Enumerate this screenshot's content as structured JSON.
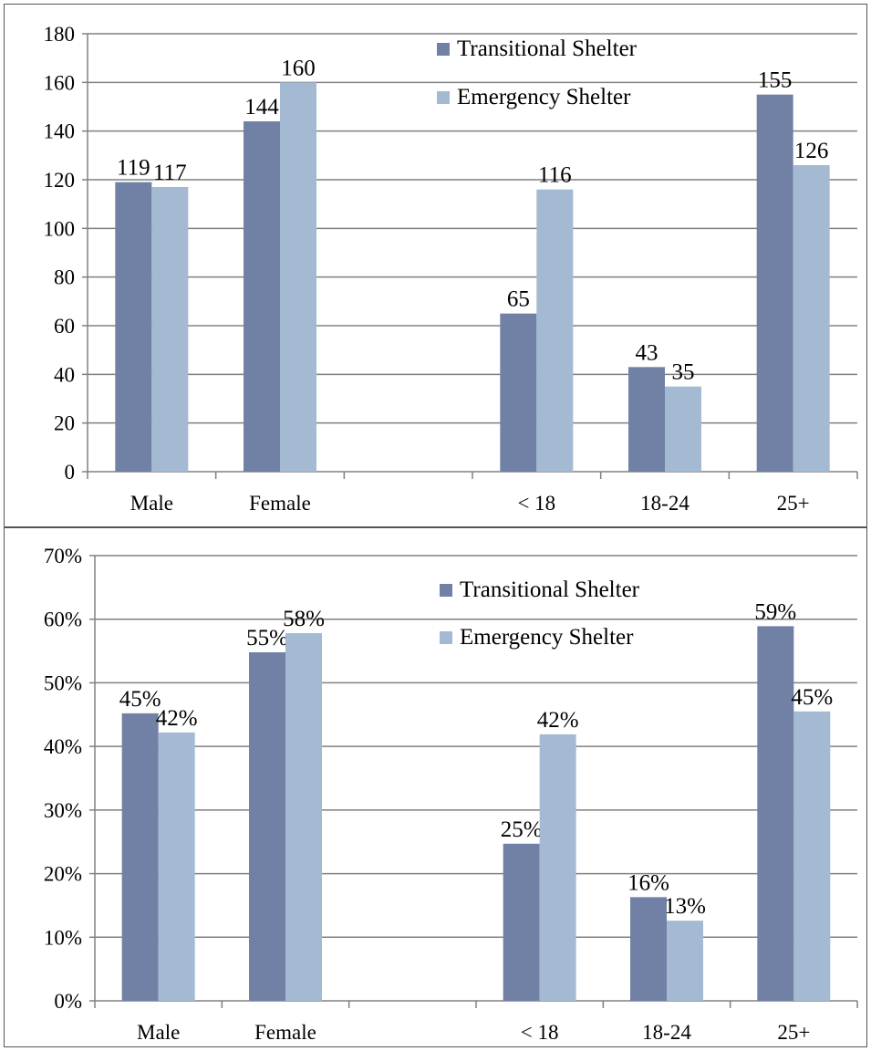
{
  "colors": {
    "transitional": "#7180a5",
    "emergency": "#a3bad2",
    "grid": "#808080",
    "axis": "#808080"
  },
  "chart_data": [
    {
      "type": "bar",
      "categories": [
        "Male",
        "Female",
        "",
        "< 18",
        "18-24",
        "25+"
      ],
      "series": [
        {
          "name": "Transitional Shelter",
          "values": [
            119,
            144,
            null,
            65,
            43,
            155
          ],
          "labels": [
            "119",
            "144",
            "",
            "65",
            "43",
            "155"
          ]
        },
        {
          "name": "Emergency Shelter",
          "values": [
            117,
            160,
            null,
            116,
            35,
            126
          ],
          "labels": [
            "117",
            "160",
            "",
            "116",
            "35",
            "126"
          ]
        }
      ],
      "ylim": [
        0,
        180
      ],
      "yticks": [
        0,
        20,
        40,
        60,
        80,
        100,
        120,
        140,
        160,
        180
      ],
      "ytick_labels": [
        "0",
        "20",
        "40",
        "60",
        "80",
        "100",
        "120",
        "140",
        "160",
        "180"
      ],
      "grid": true,
      "legend": "top-center"
    },
    {
      "type": "bar",
      "categories": [
        "Male",
        "Female",
        "",
        "< 18",
        "18-24",
        "25+"
      ],
      "series": [
        {
          "name": "Transitional Shelter",
          "values": [
            45.2,
            54.8,
            null,
            24.7,
            16.3,
            58.9
          ],
          "labels": [
            "45%",
            "55%",
            "",
            "25%",
            "16%",
            "59%"
          ]
        },
        {
          "name": "Emergency Shelter",
          "values": [
            42.2,
            57.8,
            null,
            41.9,
            12.6,
            45.5
          ],
          "labels": [
            "42%",
            "58%",
            "",
            "42%",
            "13%",
            "45%"
          ]
        }
      ],
      "ylim": [
        0,
        70
      ],
      "yticks": [
        0,
        10,
        20,
        30,
        40,
        50,
        60,
        70
      ],
      "ytick_labels": [
        "0%",
        "10%",
        "20%",
        "30%",
        "40%",
        "50%",
        "60%",
        "70%"
      ],
      "grid": true,
      "legend": "top-center"
    }
  ]
}
